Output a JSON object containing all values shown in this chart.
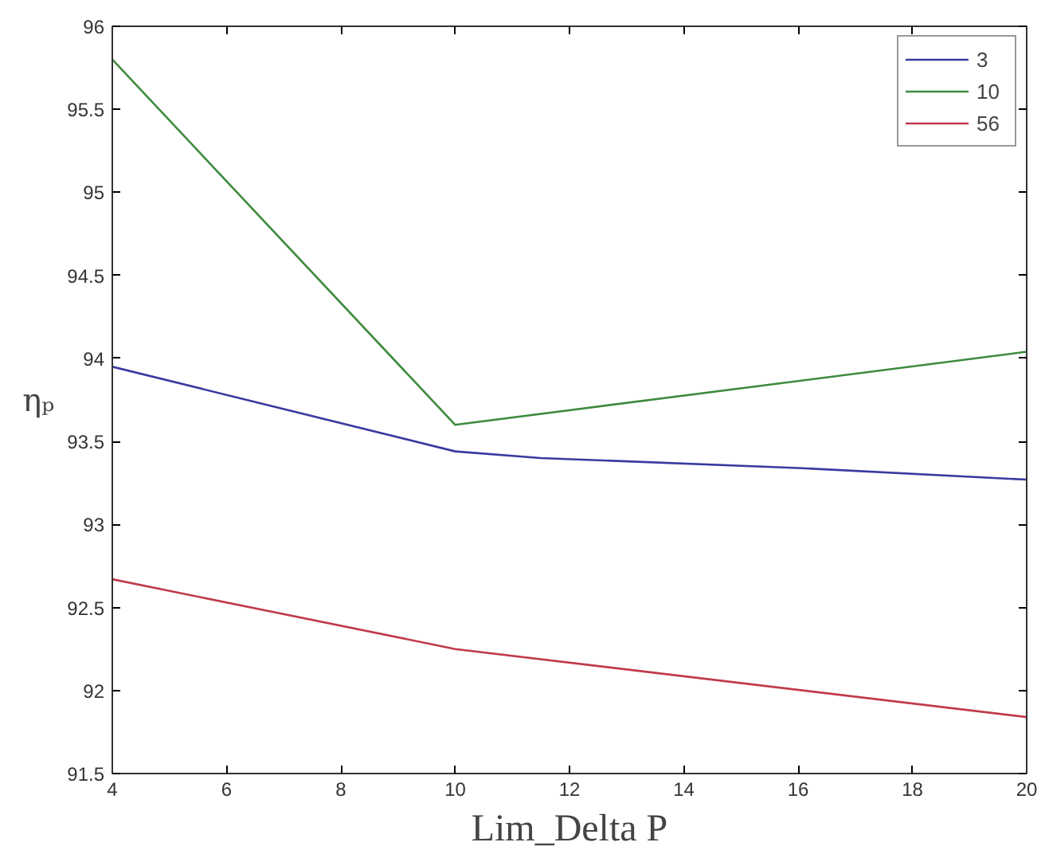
{
  "chart_data": {
    "type": "line",
    "xlabel": "Lim_Delta P",
    "ylabel": "ηₚ",
    "xlim": [
      4,
      20
    ],
    "ylim": [
      91.5,
      96
    ],
    "xticks": [
      4,
      6,
      8,
      10,
      12,
      14,
      16,
      18,
      20
    ],
    "yticks": [
      91.5,
      92,
      92.5,
      93,
      93.5,
      94,
      94.5,
      95,
      95.5,
      96
    ],
    "grid": false,
    "legend": "top right",
    "marker": "none",
    "line_style": "solid",
    "series": [
      {
        "name": "3",
        "color": "#3a3aa0",
        "x": [
          4,
          10,
          11.5,
          16,
          20
        ],
        "values": [
          93.95,
          93.44,
          93.4,
          93.34,
          93.27
        ]
      },
      {
        "name": "10",
        "color": "#3d8a3d",
        "x": [
          4,
          10,
          20
        ],
        "values": [
          95.8,
          93.6,
          94.04
        ]
      },
      {
        "name": "56",
        "color": "#c03a4a",
        "x": [
          4,
          10,
          20
        ],
        "values": [
          92.67,
          92.25,
          91.84
        ]
      }
    ]
  }
}
